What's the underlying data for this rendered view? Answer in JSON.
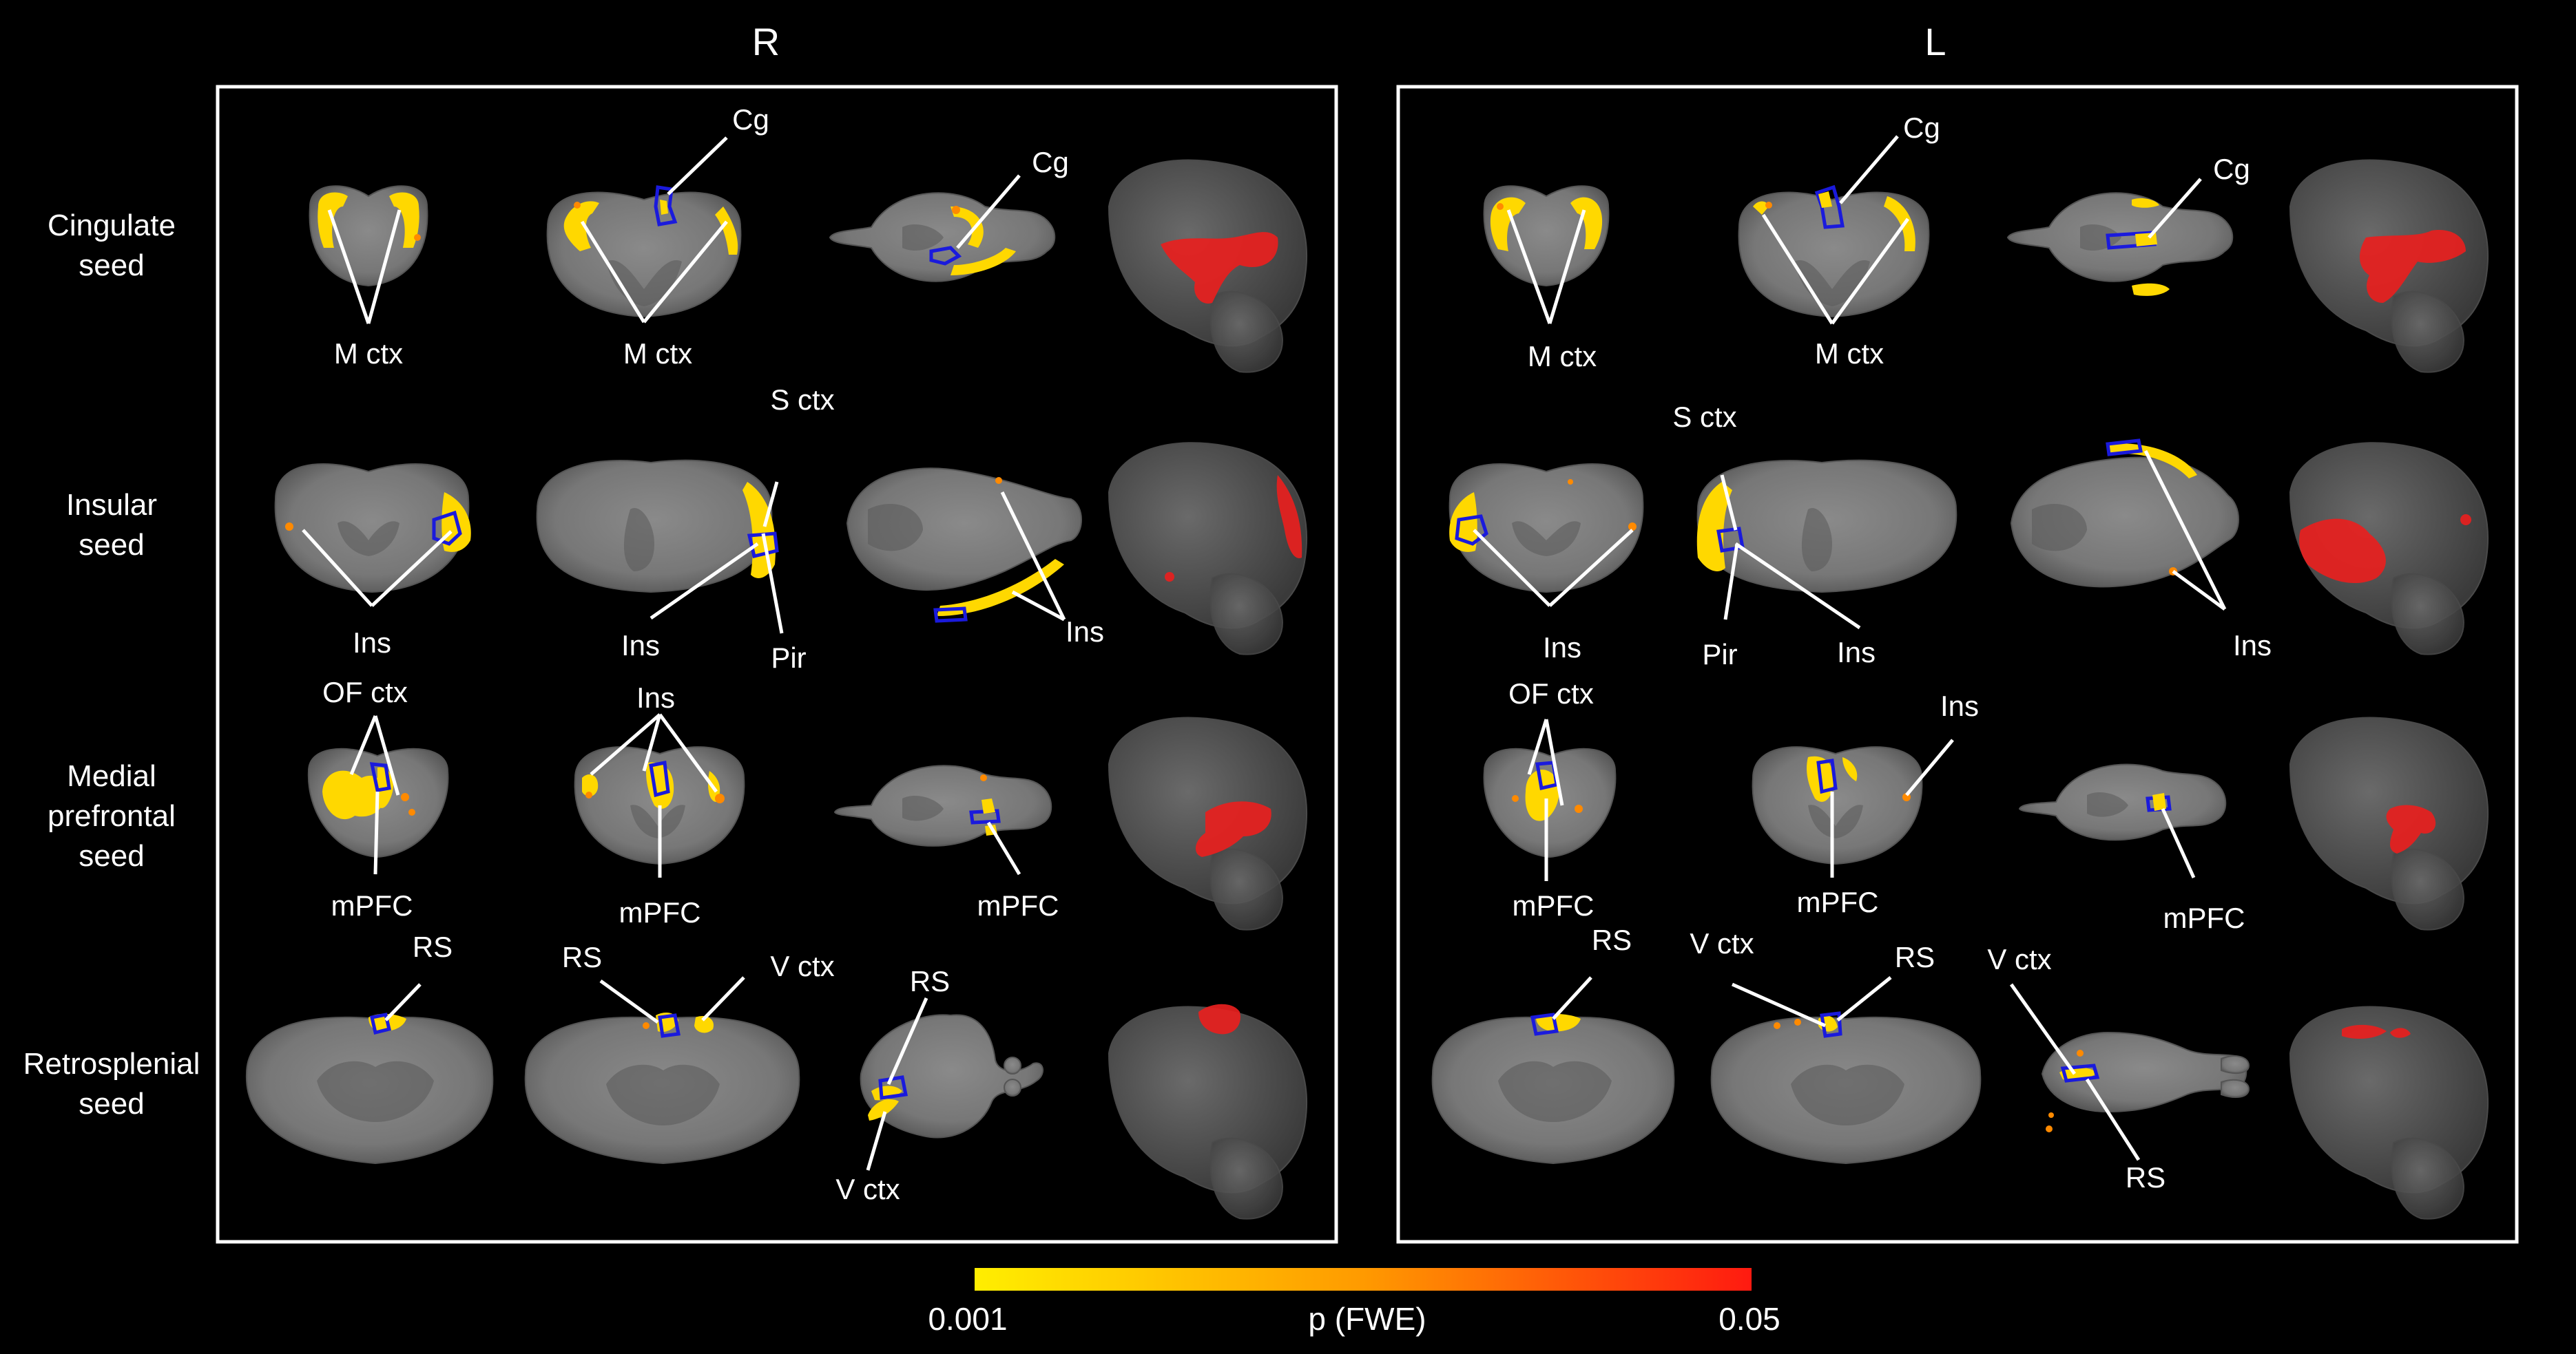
{
  "hemispheres": {
    "right": "R",
    "left": "L"
  },
  "rows": [
    {
      "lines": [
        "Cingulate",
        "seed"
      ]
    },
    {
      "lines": [
        "Insular",
        "seed"
      ]
    },
    {
      "lines": [
        "Medial",
        "prefrontal",
        "seed"
      ]
    },
    {
      "lines": [
        "Retrosplenial",
        "seed"
      ]
    }
  ],
  "annotations": {
    "r_cg_1": "Cg",
    "r_cg_2": "Cg",
    "r_mctx_1": "M ctx",
    "r_mctx_2": "M ctx",
    "r_sctx": "S ctx",
    "r_ins_1": "Ins",
    "r_ins_2": "Ins",
    "r_pir": "Pir",
    "r_ins_3": "Ins",
    "r_ofctx": "OF ctx",
    "r_ins_4": "Ins",
    "r_mpfc_1": "mPFC",
    "r_mpfc_2": "mPFC",
    "r_mpfc_3": "mPFC",
    "r_rs_1": "RS",
    "r_rs_2": "RS",
    "r_vctx_1": "V ctx",
    "r_rs_3": "RS",
    "r_vctx_2": "V ctx",
    "l_cg_1": "Cg",
    "l_cg_2": "Cg",
    "l_mctx_1": "M ctx",
    "l_mctx_2": "M ctx",
    "l_sctx": "S ctx",
    "l_ins_1": "Ins",
    "l_pir": "Pir",
    "l_ins_2": "Ins",
    "l_ins_3": "Ins",
    "l_ofctx": "OF ctx",
    "l_ins_4": "Ins",
    "l_mpfc_1": "mPFC",
    "l_mpfc_2": "mPFC",
    "l_mpfc_3": "mPFC",
    "l_rs_1": "RS",
    "l_vctx_1": "V ctx",
    "l_rs_2": "RS",
    "l_vctx_2": "V ctx",
    "l_rs_3": "RS"
  },
  "colorbar": {
    "min_label": "0.001",
    "max_label": "0.05",
    "title": "p (FWE)",
    "colors": [
      "#ffee00",
      "#ff9a00",
      "#ff1a10"
    ]
  }
}
